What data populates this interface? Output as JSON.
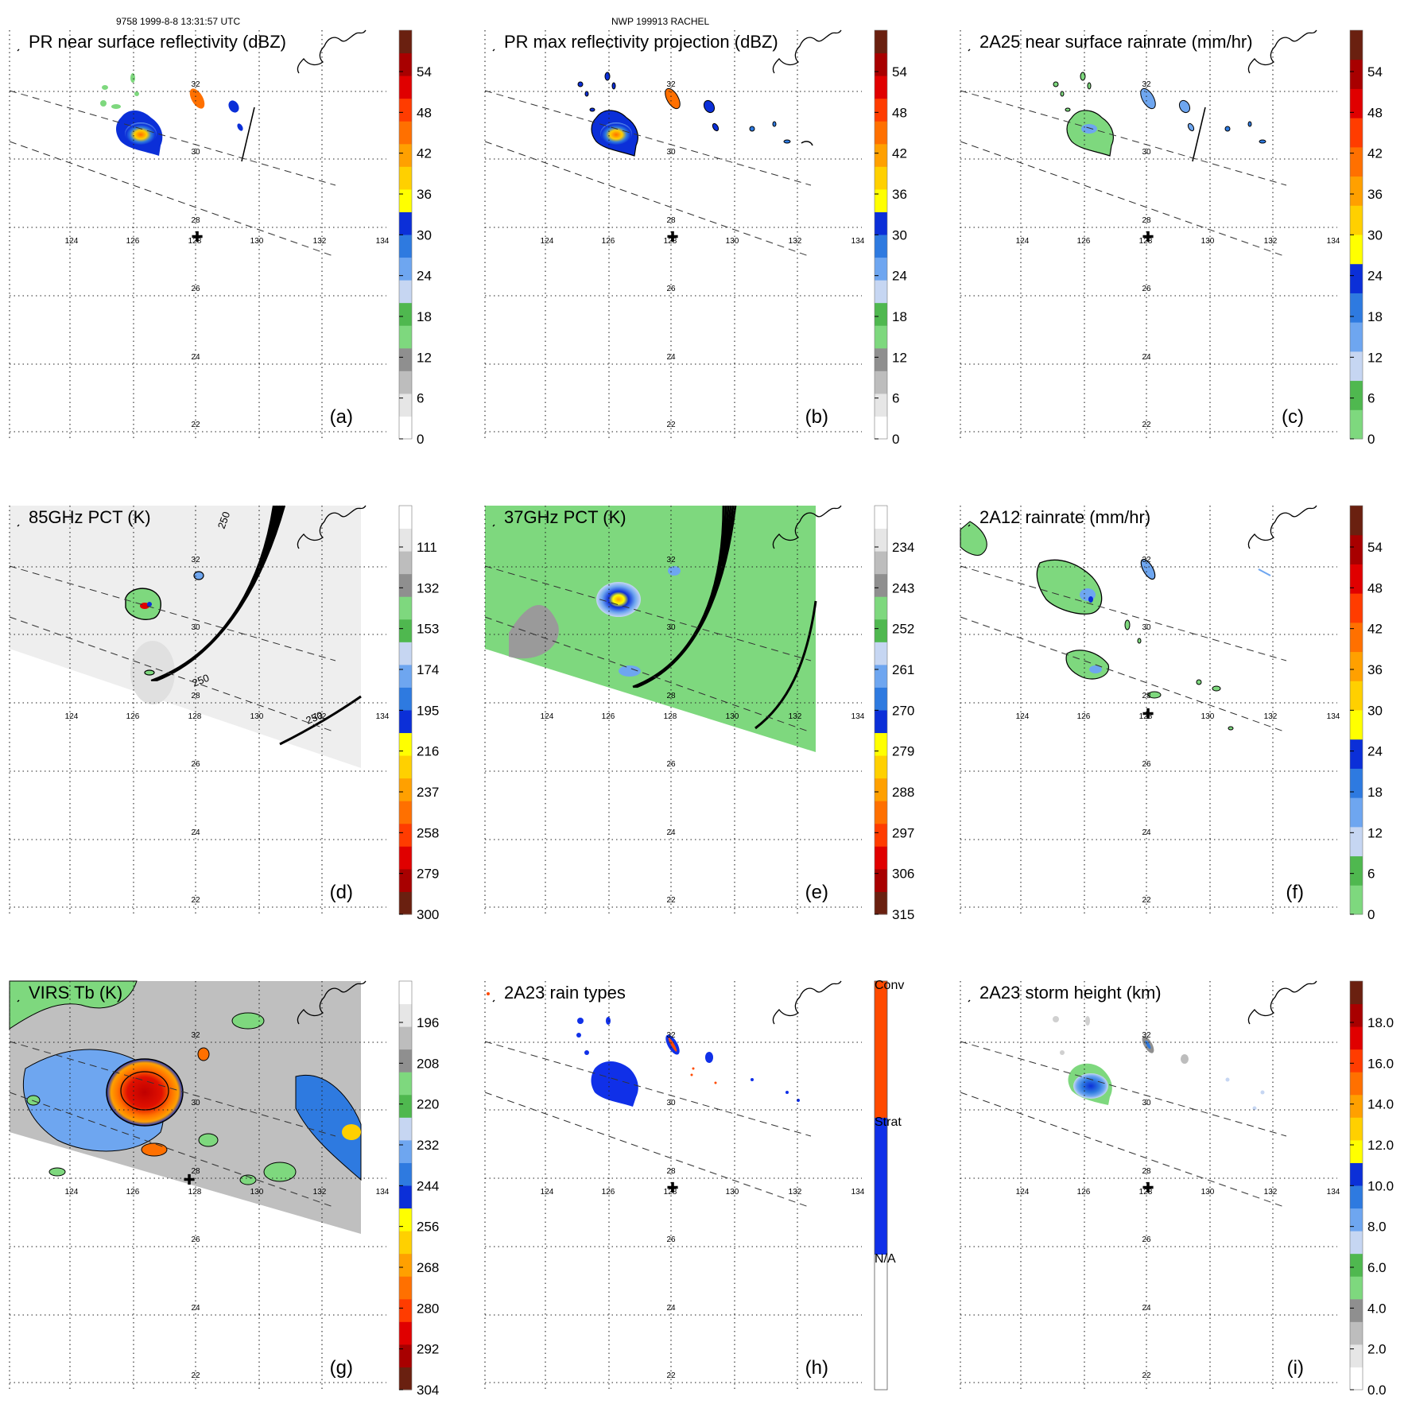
{
  "header": {
    "orbit_info": "9758 1999-8-8 13:31:57 UTC",
    "storm_info": "NWP 199913 RACHEL"
  },
  "map": {
    "lon_ticks": [
      "124",
      "126",
      "128",
      "130",
      "132",
      "134"
    ],
    "lat_ticks": [
      "32",
      "30",
      "28",
      "26",
      "24",
      "22"
    ],
    "storm_center_marker": "✚"
  },
  "panels": [
    {
      "id": "a",
      "tag": "(a)",
      "title": "PR near surface reflectivity (dBZ)",
      "scene": "pr-surface",
      "scale": "refl",
      "ticks": [
        "54",
        "48",
        "42",
        "36",
        "30",
        "24",
        "18",
        "12",
        "6",
        "0"
      ]
    },
    {
      "id": "b",
      "tag": "(b)",
      "title": "PR max reflectivity projection (dBZ)",
      "scene": "pr-max",
      "scale": "refl",
      "ticks": [
        "54",
        "48",
        "42",
        "36",
        "30",
        "24",
        "18",
        "12",
        "6",
        "0"
      ]
    },
    {
      "id": "c",
      "tag": "(c)",
      "title": "2A25 near surface rainrate (mm/hr)",
      "scene": "rain-2a25",
      "scale": "rain",
      "ticks": [
        "54",
        "48",
        "42",
        "36",
        "30",
        "24",
        "18",
        "12",
        "6",
        "0"
      ]
    },
    {
      "id": "d",
      "tag": "(d)",
      "title": "85GHz PCT (K)",
      "scene": "pct85",
      "scale": "pct85",
      "ticks": [
        "111",
        "132",
        "153",
        "174",
        "195",
        "216",
        "237",
        "258",
        "279",
        "300"
      ],
      "contour_label": "250"
    },
    {
      "id": "e",
      "tag": "(e)",
      "title": "37GHz PCT (K)",
      "scene": "pct37",
      "scale": "pct37",
      "ticks": [
        "234",
        "243",
        "252",
        "261",
        "270",
        "279",
        "288",
        "297",
        "306",
        "315"
      ]
    },
    {
      "id": "f",
      "tag": "(f)",
      "title": "2A12 rainrate (mm/hr)",
      "scene": "rain-2a12",
      "scale": "rain",
      "ticks": [
        "54",
        "48",
        "42",
        "36",
        "30",
        "24",
        "18",
        "12",
        "6",
        "0"
      ]
    },
    {
      "id": "g",
      "tag": "(g)",
      "title": "VIRS Tb (K)",
      "scene": "virs",
      "scale": "virs",
      "ticks": [
        "196",
        "208",
        "220",
        "232",
        "244",
        "256",
        "268",
        "280",
        "292",
        "304"
      ]
    },
    {
      "id": "h",
      "tag": "(h)",
      "title": "2A23 rain types",
      "scene": "raintype",
      "scale": "types",
      "ticks": [
        "Conv",
        "Strat",
        "N/A"
      ]
    },
    {
      "id": "i",
      "tag": "(i)",
      "title": "2A23 storm height (km)",
      "scene": "height",
      "scale": "height",
      "ticks": [
        "18.0",
        "16.0",
        "14.0",
        "12.0",
        "10.0",
        "8.0",
        "6.0",
        "4.0",
        "2.0",
        "0.0"
      ]
    }
  ],
  "colors": {
    "refl": [
      "#ffffff",
      "#e6e6e6",
      "#bdbdbd",
      "#8f8f8f",
      "#7ed87e",
      "#4fb84f",
      "#c6d6f2",
      "#6ea6f0",
      "#2e7ae0",
      "#0b2fd8",
      "#ffff00",
      "#ffd000",
      "#ffa000",
      "#ff7000",
      "#ff3c00",
      "#e00000",
      "#a80000",
      "#6a2010"
    ],
    "pct85": [
      "#6a2010",
      "#a80000",
      "#e00000",
      "#ff3c00",
      "#ff7000",
      "#ffa000",
      "#ffd000",
      "#ffff00",
      "#0b2fd8",
      "#2e7ae0",
      "#6ea6f0",
      "#c6d6f2",
      "#4fb84f",
      "#7ed87e",
      "#8f8f8f",
      "#bdbdbd",
      "#e6e6e6",
      "#ffffff"
    ],
    "rain": [
      "#7ed87e",
      "#4fb84f",
      "#c6d6f2",
      "#6ea6f0",
      "#2e7ae0",
      "#0b2fd8",
      "#ffff00",
      "#ffd000",
      "#ffa000",
      "#ff7000",
      "#ff3c00",
      "#e00000",
      "#a80000",
      "#6a2010"
    ],
    "types": [
      "#ffffff",
      "#1030e8",
      "#ff4a00"
    ]
  }
}
